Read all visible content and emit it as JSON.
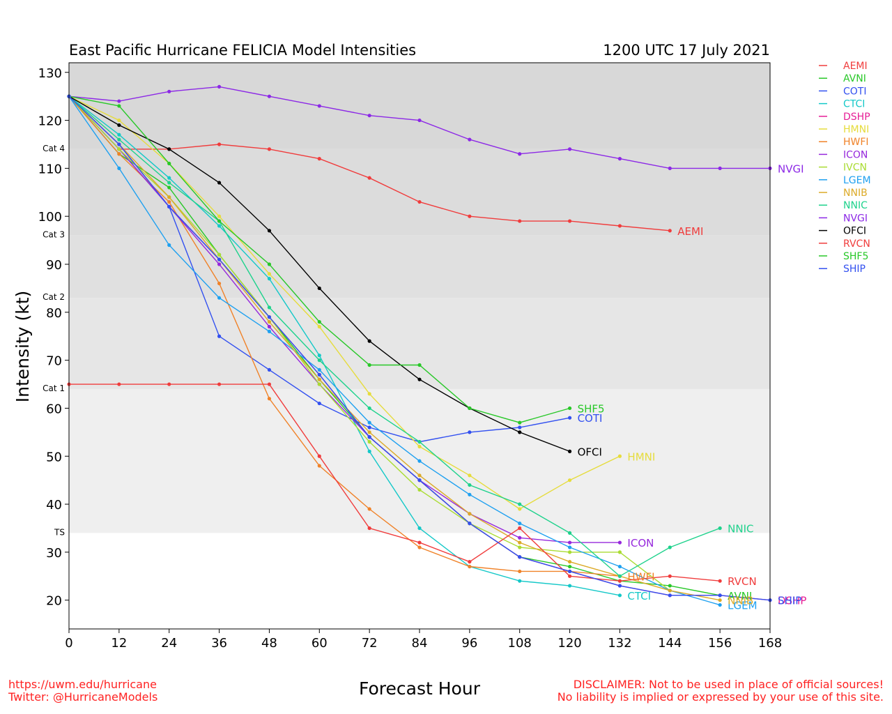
{
  "title": "East Pacific Hurricane FELICIA Model Intensities",
  "datetime": "1200 UTC 17 July 2021",
  "footer": {
    "url": "https://uwm.edu/hurricane",
    "twitter": "Twitter: @HurricaneModels",
    "disclaimer1": "DISCLAIMER: Not to be used in place of official sources!",
    "disclaimer2": "No liability is implied or expressed by your use of this site."
  },
  "chart_data": {
    "type": "line",
    "title": "East Pacific Hurricane FELICIA Model Intensities",
    "subtitle": "1200 UTC 17 July 2021",
    "xlabel": "Forecast Hour",
    "ylabel": "Intensity (kt)",
    "xlim": [
      0,
      168
    ],
    "ylim": [
      14,
      132
    ],
    "xticks": [
      0,
      12,
      24,
      36,
      48,
      60,
      72,
      84,
      96,
      108,
      120,
      132,
      144,
      156,
      168
    ],
    "yticks": [
      20,
      30,
      40,
      50,
      60,
      70,
      80,
      90,
      100,
      110,
      120,
      130
    ],
    "grid": false,
    "legend_position": "right, outside plot",
    "bands": [
      {
        "from": 14,
        "to": 34,
        "color": "#ffffff",
        "label": "TS"
      },
      {
        "from": 34,
        "to": 64,
        "color": "#efefef",
        "label": "Cat 1"
      },
      {
        "from": 64,
        "to": 83,
        "color": "#e6e6e6",
        "label": "Cat 2"
      },
      {
        "from": 83,
        "to": 96,
        "color": "#e0e0e0",
        "label": "Cat 3"
      },
      {
        "from": 96,
        "to": 114,
        "color": "#dcdcdc",
        "label": "Cat 4"
      },
      {
        "from": 114,
        "to": 132,
        "color": "#d8d8d8",
        "label": ""
      }
    ],
    "series": [
      {
        "name": "AEMI",
        "color": "#f03c3c",
        "label": "AEMI",
        "points": [
          [
            0,
            125
          ],
          [
            12,
            114
          ],
          [
            24,
            114
          ],
          [
            36,
            115
          ],
          [
            48,
            114
          ],
          [
            60,
            112
          ],
          [
            72,
            108
          ],
          [
            84,
            103
          ],
          [
            96,
            100
          ],
          [
            108,
            99
          ],
          [
            120,
            99
          ],
          [
            132,
            98
          ],
          [
            144,
            97
          ]
        ]
      },
      {
        "name": "AVNI",
        "color": "#28c828",
        "label": "AVNI",
        "points": [
          [
            0,
            125
          ],
          [
            12,
            113
          ],
          [
            24,
            106
          ],
          [
            36,
            92
          ],
          [
            48,
            79
          ],
          [
            60,
            66
          ],
          [
            72,
            54
          ],
          [
            84,
            45
          ],
          [
            96,
            36
          ],
          [
            108,
            29
          ],
          [
            120,
            27
          ],
          [
            132,
            24
          ],
          [
            144,
            23
          ],
          [
            156,
            21
          ]
        ]
      },
      {
        "name": "COTI",
        "color": "#3250f0",
        "label": "COTI",
        "points": [
          [
            0,
            125
          ],
          [
            12,
            114
          ],
          [
            24,
            102
          ],
          [
            36,
            75
          ],
          [
            48,
            68
          ],
          [
            60,
            61
          ],
          [
            72,
            56
          ],
          [
            84,
            53
          ],
          [
            96,
            55
          ],
          [
            108,
            56
          ],
          [
            120,
            58
          ]
        ]
      },
      {
        "name": "CTCI",
        "color": "#14c8c8",
        "label": "CTCI",
        "points": [
          [
            0,
            125
          ],
          [
            12,
            117
          ],
          [
            24,
            108
          ],
          [
            36,
            98
          ],
          [
            48,
            87
          ],
          [
            60,
            71
          ],
          [
            72,
            51
          ],
          [
            84,
            35
          ],
          [
            96,
            27
          ],
          [
            108,
            24
          ],
          [
            120,
            23
          ],
          [
            132,
            21
          ]
        ]
      },
      {
        "name": "DSHP",
        "color": "#e61e96",
        "label": "DSHP",
        "points": [
          [
            0,
            125
          ],
          [
            12,
            115
          ],
          [
            24,
            102
          ],
          [
            36,
            91
          ],
          [
            48,
            79
          ],
          [
            60,
            67
          ],
          [
            72,
            54
          ],
          [
            84,
            45
          ],
          [
            96,
            36
          ],
          [
            108,
            29
          ],
          [
            120,
            26
          ],
          [
            132,
            23
          ],
          [
            144,
            21
          ],
          [
            156,
            21
          ],
          [
            168,
            20
          ]
        ]
      },
      {
        "name": "HMNI",
        "color": "#e6dc3c",
        "label": "HMNI",
        "points": [
          [
            0,
            125
          ],
          [
            12,
            120
          ],
          [
            24,
            111
          ],
          [
            36,
            100
          ],
          [
            48,
            88
          ],
          [
            60,
            77
          ],
          [
            72,
            63
          ],
          [
            84,
            52
          ],
          [
            96,
            46
          ],
          [
            108,
            39
          ],
          [
            120,
            45
          ],
          [
            132,
            50
          ]
        ]
      },
      {
        "name": "HWFI",
        "color": "#f08228",
        "label": "HWFI",
        "points": [
          [
            0,
            125
          ],
          [
            12,
            113
          ],
          [
            24,
            103
          ],
          [
            36,
            86
          ],
          [
            48,
            62
          ],
          [
            60,
            48
          ],
          [
            72,
            39
          ],
          [
            84,
            31
          ],
          [
            96,
            27
          ],
          [
            108,
            26
          ],
          [
            120,
            26
          ],
          [
            132,
            25
          ]
        ]
      },
      {
        "name": "ICON",
        "color": "#9628dc",
        "label": "ICON",
        "points": [
          [
            0,
            125
          ],
          [
            12,
            114
          ],
          [
            24,
            102
          ],
          [
            36,
            90
          ],
          [
            48,
            77
          ],
          [
            60,
            65
          ],
          [
            72,
            54
          ],
          [
            84,
            45
          ],
          [
            96,
            38
          ],
          [
            108,
            33
          ],
          [
            120,
            32
          ],
          [
            132,
            32
          ]
        ]
      },
      {
        "name": "IVCN",
        "color": "#aadc32",
        "label": "",
        "points": [
          [
            0,
            125
          ],
          [
            12,
            114
          ],
          [
            24,
            104
          ],
          [
            36,
            92
          ],
          [
            48,
            79
          ],
          [
            60,
            65
          ],
          [
            72,
            53
          ],
          [
            84,
            43
          ],
          [
            96,
            36
          ],
          [
            108,
            31
          ],
          [
            120,
            30
          ],
          [
            132,
            30
          ],
          [
            144,
            22
          ]
        ]
      },
      {
        "name": "LGEM",
        "color": "#1ea0f0",
        "label": "LGEM",
        "points": [
          [
            0,
            125
          ],
          [
            12,
            110
          ],
          [
            24,
            94
          ],
          [
            36,
            83
          ],
          [
            48,
            76
          ],
          [
            60,
            68
          ],
          [
            72,
            57
          ],
          [
            84,
            49
          ],
          [
            96,
            42
          ],
          [
            108,
            36
          ],
          [
            120,
            31
          ],
          [
            132,
            27
          ],
          [
            144,
            22
          ],
          [
            156,
            19
          ]
        ]
      },
      {
        "name": "NNIB",
        "color": "#dcaa28",
        "label": "NNIB",
        "points": [
          [
            0,
            125
          ],
          [
            12,
            115
          ],
          [
            24,
            104
          ],
          [
            36,
            91
          ],
          [
            48,
            78
          ],
          [
            60,
            66
          ],
          [
            72,
            55
          ],
          [
            84,
            46
          ],
          [
            96,
            38
          ],
          [
            108,
            32
          ],
          [
            120,
            28
          ],
          [
            132,
            25
          ],
          [
            144,
            22
          ],
          [
            156,
            20
          ]
        ]
      },
      {
        "name": "NNIC",
        "color": "#1ed28c",
        "label": "NNIC",
        "points": [
          [
            0,
            125
          ],
          [
            12,
            116
          ],
          [
            24,
            107
          ],
          [
            36,
            99
          ],
          [
            48,
            81
          ],
          [
            60,
            70
          ],
          [
            72,
            60
          ],
          [
            84,
            53
          ],
          [
            96,
            44
          ],
          [
            108,
            40
          ],
          [
            120,
            34
          ],
          [
            132,
            25
          ],
          [
            144,
            31
          ],
          [
            156,
            35
          ]
        ]
      },
      {
        "name": "NVGI",
        "color": "#8c28e6",
        "label": "NVGI",
        "points": [
          [
            0,
            125
          ],
          [
            12,
            124
          ],
          [
            24,
            126
          ],
          [
            36,
            127
          ],
          [
            48,
            125
          ],
          [
            60,
            123
          ],
          [
            72,
            121
          ],
          [
            84,
            120
          ],
          [
            96,
            116
          ],
          [
            108,
            113
          ],
          [
            120,
            114
          ],
          [
            132,
            112
          ],
          [
            144,
            110
          ],
          [
            156,
            110
          ],
          [
            168,
            110
          ]
        ]
      },
      {
        "name": "OFCI",
        "color": "#000000",
        "label": "OFCI",
        "points": [
          [
            0,
            125
          ],
          [
            12,
            119
          ],
          [
            24,
            114
          ],
          [
            36,
            107
          ],
          [
            48,
            97
          ],
          [
            60,
            85
          ],
          [
            72,
            74
          ],
          [
            84,
            66
          ],
          [
            96,
            60
          ],
          [
            108,
            55
          ],
          [
            120,
            51
          ]
        ]
      },
      {
        "name": "RVCN",
        "color": "#f03c3c",
        "label": "RVCN",
        "points": [
          [
            0,
            65
          ],
          [
            12,
            65
          ],
          [
            24,
            65
          ],
          [
            36,
            65
          ],
          [
            48,
            65
          ],
          [
            60,
            50
          ],
          [
            72,
            35
          ],
          [
            84,
            32
          ],
          [
            96,
            28
          ],
          [
            108,
            35
          ],
          [
            120,
            25
          ],
          [
            132,
            24
          ],
          [
            144,
            25
          ],
          [
            156,
            24
          ]
        ]
      },
      {
        "name": "SHF5",
        "color": "#28c828",
        "label": "SHF5",
        "points": [
          [
            0,
            125
          ],
          [
            12,
            123
          ],
          [
            24,
            111
          ],
          [
            36,
            99
          ],
          [
            48,
            90
          ],
          [
            60,
            78
          ],
          [
            72,
            69
          ],
          [
            84,
            69
          ],
          [
            96,
            60
          ],
          [
            108,
            57
          ],
          [
            120,
            60
          ]
        ]
      },
      {
        "name": "SHIP",
        "color": "#3250f0",
        "label": "SHIP",
        "points": [
          [
            0,
            125
          ],
          [
            12,
            115
          ],
          [
            24,
            102
          ],
          [
            36,
            91
          ],
          [
            48,
            79
          ],
          [
            60,
            67
          ],
          [
            72,
            54
          ],
          [
            84,
            45
          ],
          [
            96,
            36
          ],
          [
            108,
            29
          ],
          [
            120,
            26
          ],
          [
            132,
            23
          ],
          [
            144,
            21
          ],
          [
            156,
            21
          ],
          [
            168,
            20
          ]
        ]
      }
    ]
  }
}
